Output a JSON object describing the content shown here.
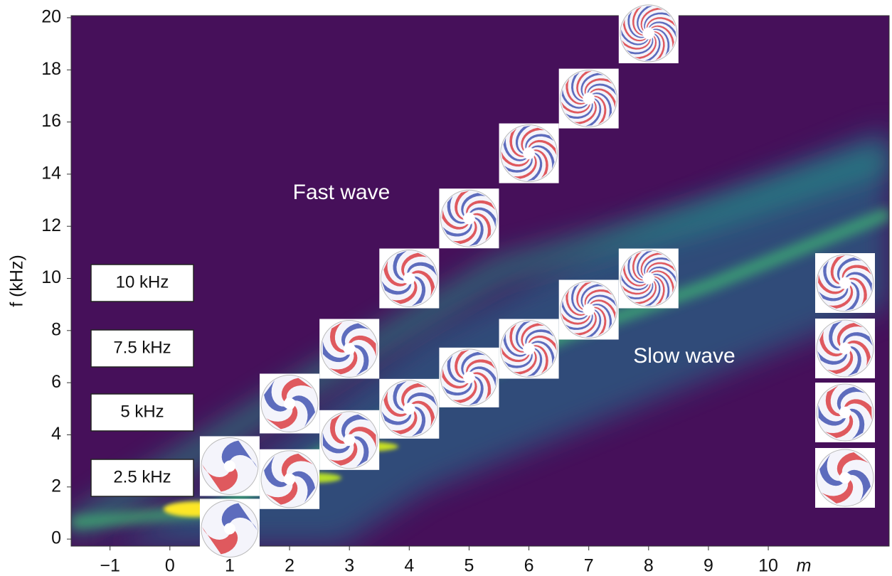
{
  "chart_data": {
    "type": "scatter",
    "y_label": "f (kHz)",
    "x_label": "m",
    "annotations": [
      "Fast wave",
      "Slow wave"
    ],
    "frequency_boxes": [
      "10 kHz",
      "7.5 kHz",
      "5 kHz",
      "2.5 kHz"
    ],
    "xlim": [
      -1.65,
      12.02
    ],
    "ylim": [
      -0.27,
      20.08
    ],
    "xticks": [
      {
        "value": -1,
        "label": "−1"
      },
      0,
      1,
      2,
      3,
      4,
      5,
      6,
      7,
      8,
      9,
      10
    ],
    "yticks": [
      0,
      2,
      4,
      6,
      8,
      10,
      12,
      14,
      16,
      18,
      20
    ],
    "series": [
      {
        "x": [
          1,
          2,
          3,
          4,
          5,
          6,
          7,
          8
        ],
        "values": [
          2.8,
          5.2,
          7.3,
          10.0,
          12.3,
          14.8,
          16.9,
          19.4
        ]
      },
      {
        "x": [
          1,
          2,
          3,
          4,
          5,
          6,
          7,
          8
        ],
        "values": [
          0.4,
          2.3,
          3.8,
          5.0,
          6.2,
          7.3,
          8.8,
          10.0
        ]
      }
    ]
  }
}
